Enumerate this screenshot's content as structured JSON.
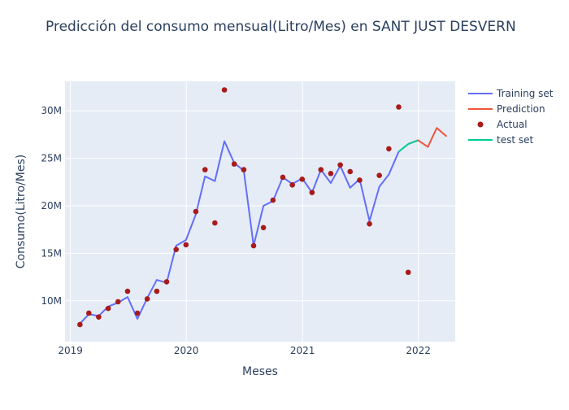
{
  "chart_data": {
    "type": "line",
    "title": "Predicción del consumo mensual(Litro/Mes) en SANT JUST DESVERN",
    "xlabel": "Meses",
    "ylabel": "Consumo(Litro/Mes)",
    "xlim": [
      "2018-12-15",
      "2022-04-27"
    ],
    "ylim": [
      5.7,
      33.1
    ],
    "y_unit": "millions of litres",
    "x_ticks": [
      {
        "date": "2019-01-01",
        "label": "2019"
      },
      {
        "date": "2020-01-01",
        "label": "2020"
      },
      {
        "date": "2021-01-01",
        "label": "2021"
      },
      {
        "date": "2022-01-01",
        "label": "2022"
      }
    ],
    "y_ticks": [
      {
        "value": 10,
        "label": "10M"
      },
      {
        "value": 15,
        "label": "15M"
      },
      {
        "value": 20,
        "label": "20M"
      },
      {
        "value": 25,
        "label": "25M"
      },
      {
        "value": 30,
        "label": "30M"
      }
    ],
    "grid": true,
    "legend_position": "top-right",
    "series": [
      {
        "name": "Training set",
        "type": "line",
        "color": "#636efa",
        "points": [
          [
            "2019-01-31",
            7.6
          ],
          [
            "2019-02-28",
            8.6
          ],
          [
            "2019-03-31",
            8.4
          ],
          [
            "2019-04-30",
            9.4
          ],
          [
            "2019-05-31",
            9.8
          ],
          [
            "2019-06-30",
            10.4
          ],
          [
            "2019-07-31",
            8.1
          ],
          [
            "2019-08-31",
            10.3
          ],
          [
            "2019-09-30",
            12.2
          ],
          [
            "2019-10-31",
            11.9
          ],
          [
            "2019-11-30",
            15.8
          ],
          [
            "2019-12-31",
            16.4
          ],
          [
            "2020-01-31",
            19.1
          ],
          [
            "2020-02-29",
            23.1
          ],
          [
            "2020-03-31",
            22.6
          ],
          [
            "2020-04-30",
            26.8
          ],
          [
            "2020-05-31",
            24.5
          ],
          [
            "2020-06-30",
            23.7
          ],
          [
            "2020-07-31",
            15.8
          ],
          [
            "2020-08-31",
            20.0
          ],
          [
            "2020-09-30",
            20.5
          ],
          [
            "2020-10-31",
            23.0
          ],
          [
            "2020-11-30",
            22.3
          ],
          [
            "2020-12-31",
            22.9
          ],
          [
            "2021-01-31",
            21.4
          ],
          [
            "2021-02-28",
            23.8
          ],
          [
            "2021-03-31",
            22.4
          ],
          [
            "2021-04-30",
            24.2
          ],
          [
            "2021-05-31",
            21.9
          ],
          [
            "2021-06-30",
            22.8
          ],
          [
            "2021-07-31",
            18.4
          ],
          [
            "2021-08-31",
            22.0
          ],
          [
            "2021-09-30",
            23.3
          ],
          [
            "2021-10-31",
            25.7
          ]
        ]
      },
      {
        "name": "Prediction",
        "type": "line",
        "color": "#ef553b",
        "points": [
          [
            "2021-11-30",
            26.5
          ],
          [
            "2021-12-31",
            26.9
          ],
          [
            "2022-01-31",
            26.2
          ],
          [
            "2022-02-28",
            28.2
          ],
          [
            "2022-03-31",
            27.3
          ]
        ]
      },
      {
        "name": "Actual",
        "type": "scatter",
        "color": "#a81b1b",
        "points": [
          [
            "2019-01-31",
            7.5
          ],
          [
            "2019-02-28",
            8.7
          ],
          [
            "2019-03-31",
            8.3
          ],
          [
            "2019-04-30",
            9.2
          ],
          [
            "2019-05-31",
            9.9
          ],
          [
            "2019-06-30",
            11.0
          ],
          [
            "2019-07-31",
            8.7
          ],
          [
            "2019-08-31",
            10.2
          ],
          [
            "2019-09-30",
            11.0
          ],
          [
            "2019-10-31",
            12.0
          ],
          [
            "2019-11-30",
            15.4
          ],
          [
            "2019-12-31",
            15.9
          ],
          [
            "2020-01-31",
            19.4
          ],
          [
            "2020-02-29",
            23.8
          ],
          [
            "2020-03-31",
            18.2
          ],
          [
            "2020-04-30",
            32.2
          ],
          [
            "2020-05-31",
            24.4
          ],
          [
            "2020-06-30",
            23.8
          ],
          [
            "2020-07-31",
            15.8
          ],
          [
            "2020-08-31",
            17.7
          ],
          [
            "2020-09-30",
            20.6
          ],
          [
            "2020-10-31",
            23.0
          ],
          [
            "2020-11-30",
            22.2
          ],
          [
            "2020-12-31",
            22.8
          ],
          [
            "2021-01-31",
            21.4
          ],
          [
            "2021-02-28",
            23.8
          ],
          [
            "2021-03-31",
            23.4
          ],
          [
            "2021-04-30",
            24.3
          ],
          [
            "2021-05-31",
            23.6
          ],
          [
            "2021-06-30",
            22.7
          ],
          [
            "2021-07-31",
            18.1
          ],
          [
            "2021-08-31",
            23.2
          ],
          [
            "2021-09-30",
            26.0
          ],
          [
            "2021-10-31",
            30.4
          ],
          [
            "2021-11-30",
            13.0
          ]
        ]
      },
      {
        "name": "test set",
        "type": "line",
        "color": "#00cc96",
        "points": [
          [
            "2021-10-31",
            25.7
          ],
          [
            "2021-11-30",
            26.5
          ],
          [
            "2021-12-31",
            26.9
          ]
        ]
      }
    ]
  }
}
